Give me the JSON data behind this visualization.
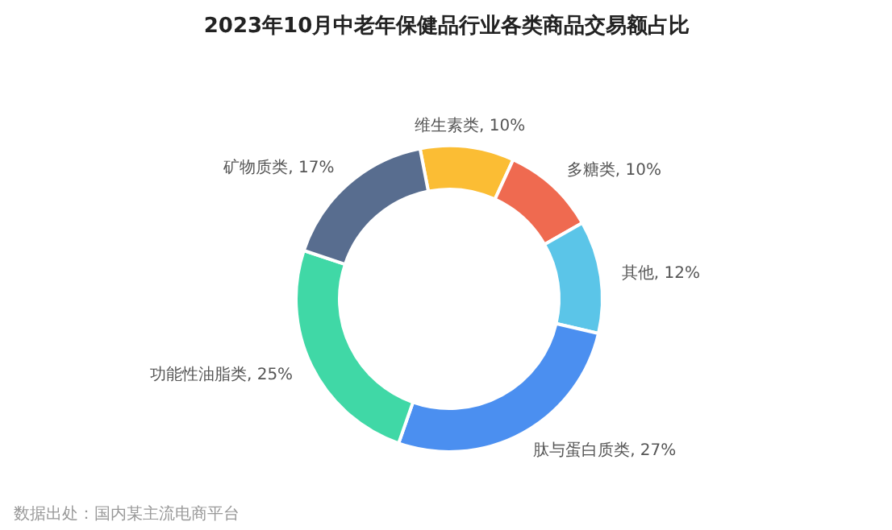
{
  "chart_data": {
    "type": "donut",
    "title": "2023年10月中老年保健品行业各类商品交易额占比",
    "categories": [
      "维生素类",
      "多糖类",
      "其他",
      "肽与蛋白质类",
      "功能性油脂类",
      "矿物质类"
    ],
    "values": [
      10,
      10,
      12,
      27,
      25,
      17
    ],
    "value_labels": [
      "10%",
      "10%",
      "12%",
      "27%",
      "25%",
      "17%"
    ],
    "colors": [
      "#fbbd34",
      "#ef6a50",
      "#5bc5e8",
      "#4b8ff0",
      "#40d8a6",
      "#586d8f"
    ],
    "annotations": [
      "数据出处：国内某主流电商平台"
    ]
  }
}
